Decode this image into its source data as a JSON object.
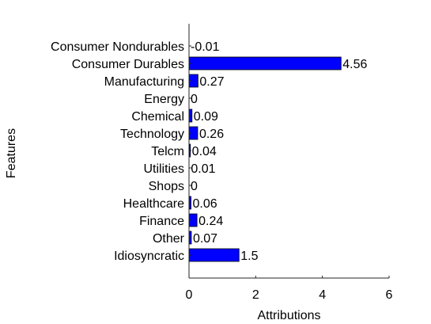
{
  "chart_data": {
    "type": "bar",
    "orientation": "horizontal",
    "categories": [
      "Consumer Nondurables",
      "Consumer Durables",
      "Manufacturing",
      "Energy",
      "Chemical",
      "Technology",
      "Telcm",
      "Utilities",
      "Shops",
      "Healthcare",
      "Finance",
      "Other",
      "Idiosyncratic"
    ],
    "values": [
      -0.01,
      4.56,
      0.27,
      0,
      0.09,
      0.26,
      0.04,
      0.01,
      0,
      0.06,
      0.24,
      0.07,
      1.5
    ],
    "value_labels": [
      "-0.01",
      "4.56",
      "0.27",
      "0",
      "0.09",
      "0.26",
      "0.04",
      "0.01",
      "0",
      "0.06",
      "0.24",
      "0.07",
      "1.5"
    ],
    "xlabel": "Attributions",
    "ylabel": "Features",
    "xlim": [
      0,
      6
    ],
    "xticks": [
      0,
      2,
      4,
      6
    ],
    "bar_color": "#0000ff",
    "grid": false,
    "legend": "none"
  }
}
